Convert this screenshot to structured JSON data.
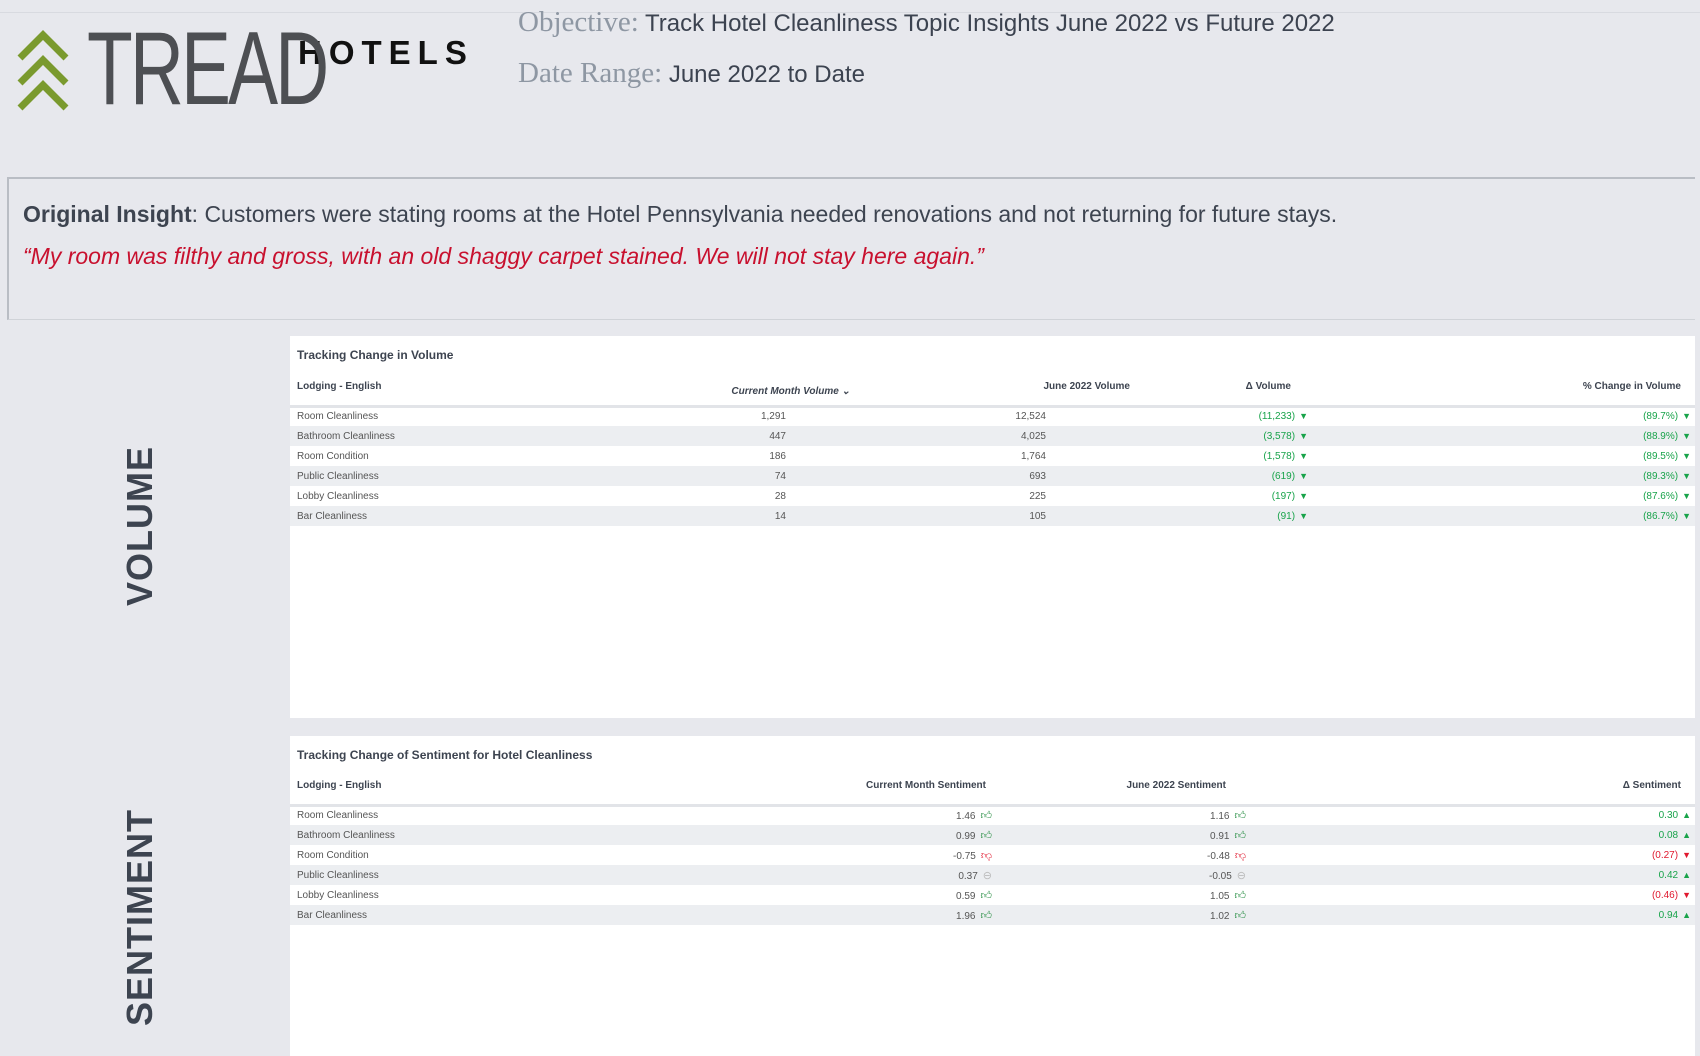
{
  "brand": {
    "name": "TREAD",
    "sub": "HOTELS",
    "chevron_color": "#7a9a2e"
  },
  "header": {
    "objective_label": "Objective:",
    "objective": "Track Hotel Cleanliness Topic Insights June 2022 vs Future 2022",
    "date_label": "Date Range:",
    "date": "June 2022 to Date"
  },
  "insight": {
    "label": "Original Insight",
    "text": ": Customers were stating rooms at the Hotel Pennsylvania needed renovations and not returning for future stays.",
    "quote": "“My room was filthy and gross, with an old shaggy carpet stained. We will not stay here again.”"
  },
  "side": {
    "volume": "VOLUME",
    "sentiment": "SENTIMENT"
  },
  "volume": {
    "title": "Tracking Change in Volume",
    "headers": [
      "Lodging - English",
      "Current Month Volume",
      "June 2022 Volume",
      "Δ Volume",
      "% Change in Volume"
    ],
    "sort_icon": "chevron-down-icon",
    "rows": [
      {
        "name": "Room Cleanliness",
        "current": "1,291",
        "june": "12,524",
        "delta": "(11,233)",
        "pct": "(89.7%)",
        "trend": "down"
      },
      {
        "name": "Bathroom Cleanliness",
        "current": "447",
        "june": "4,025",
        "delta": "(3,578)",
        "pct": "(88.9%)",
        "trend": "down"
      },
      {
        "name": "Room Condition",
        "current": "186",
        "june": "1,764",
        "delta": "(1,578)",
        "pct": "(89.5%)",
        "trend": "down"
      },
      {
        "name": "Public Cleanliness",
        "current": "74",
        "june": "693",
        "delta": "(619)",
        "pct": "(89.3%)",
        "trend": "down"
      },
      {
        "name": "Lobby Cleanliness",
        "current": "28",
        "june": "225",
        "delta": "(197)",
        "pct": "(87.6%)",
        "trend": "down"
      },
      {
        "name": "Bar Cleanliness",
        "current": "14",
        "june": "105",
        "delta": "(91)",
        "pct": "(86.7%)",
        "trend": "down"
      }
    ]
  },
  "sentiment": {
    "title": "Tracking Change of Sentiment for Hotel Cleanliness",
    "headers": [
      "Lodging - English",
      "Current Month Sentiment",
      "June 2022 Sentiment",
      "Δ Sentiment"
    ],
    "rows": [
      {
        "name": "Room Cleanliness",
        "current": "1.46",
        "current_icon": "thumbs-up",
        "june": "1.16",
        "june_icon": "thumbs-up",
        "delta": "0.30",
        "trend": "up"
      },
      {
        "name": "Bathroom Cleanliness",
        "current": "0.99",
        "current_icon": "thumbs-up",
        "june": "0.91",
        "june_icon": "thumbs-up",
        "delta": "0.08",
        "trend": "up"
      },
      {
        "name": "Room Condition",
        "current": "-0.75",
        "current_icon": "thumbs-down",
        "june": "-0.48",
        "june_icon": "thumbs-down",
        "delta": "(0.27)",
        "trend": "down"
      },
      {
        "name": "Public Cleanliness",
        "current": "0.37",
        "current_icon": "neutral",
        "june": "-0.05",
        "june_icon": "neutral",
        "delta": "0.42",
        "trend": "up"
      },
      {
        "name": "Lobby Cleanliness",
        "current": "0.59",
        "current_icon": "thumbs-up",
        "june": "1.05",
        "june_icon": "thumbs-up",
        "delta": "(0.46)",
        "trend": "down"
      },
      {
        "name": "Bar Cleanliness",
        "current": "1.96",
        "current_icon": "thumbs-up",
        "june": "1.02",
        "june_icon": "thumbs-up",
        "delta": "0.94",
        "trend": "up"
      }
    ]
  }
}
